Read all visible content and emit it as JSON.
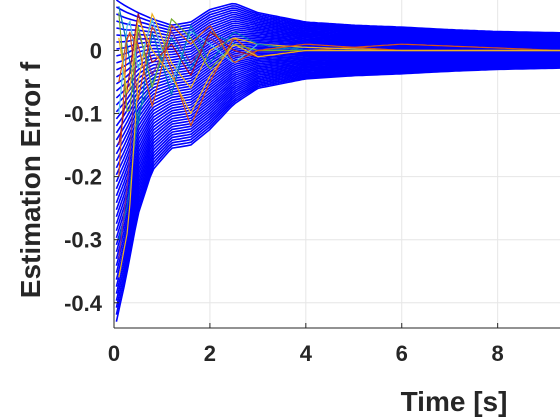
{
  "chart_data": {
    "type": "line",
    "xlabel": "Time [s]",
    "ylabel": "Estimation Error f",
    "xlim": [
      0,
      9.3
    ],
    "ylim": [
      -0.44,
      0.08
    ],
    "x_ticks": [
      0,
      2,
      4,
      6,
      8
    ],
    "y_ticks": [
      0,
      -0.1,
      -0.2,
      -0.3,
      -0.4
    ],
    "x_tick_labels": [
      "0",
      "2",
      "4",
      "6",
      "8"
    ],
    "y_tick_labels": [
      "0",
      "-0.1",
      "-0.2",
      "-0.3",
      "-0.4"
    ],
    "grid": true,
    "series": [
      {
        "color": "#0000ff",
        "x": [
          0.05,
          0.25,
          0.5,
          0.8,
          1.2,
          1.6,
          2.0,
          2.5,
          3.0,
          4.0,
          5.0,
          6.0,
          7.0,
          8.0,
          9.3
        ],
        "values": [
          -0.43,
          -0.36,
          -0.26,
          -0.19,
          -0.155,
          -0.15,
          -0.125,
          -0.085,
          -0.06,
          -0.045,
          -0.04,
          -0.037,
          -0.033,
          -0.03,
          -0.028
        ]
      },
      {
        "color": "#0000ff",
        "x": [
          0.05,
          0.25,
          0.5,
          0.8,
          1.2,
          1.6,
          2.0,
          2.5,
          3.0,
          4.0,
          5.0,
          6.0,
          7.0,
          8.0,
          9.3
        ],
        "values": [
          0.08,
          0.07,
          0.06,
          0.05,
          0.04,
          0.045,
          0.065,
          0.075,
          0.06,
          0.045,
          0.04,
          0.037,
          0.033,
          0.03,
          0.028
        ]
      },
      {
        "color": "#0072bd",
        "x": [
          0.1,
          0.3,
          0.5,
          0.8,
          1.2,
          1.6,
          2.0,
          2.5,
          3.0,
          4.0,
          6.0,
          9.3
        ],
        "values": [
          -0.3,
          -0.24,
          -0.1,
          -0.05,
          0.02,
          -0.03,
          0.03,
          0.01,
          0.0,
          0.005,
          0.0,
          0.0
        ]
      },
      {
        "color": "#d95319",
        "x": [
          0.1,
          0.3,
          0.5,
          0.8,
          1.2,
          1.6,
          2.0,
          2.5,
          3.0,
          4.0,
          6.0,
          9.3
        ],
        "values": [
          -0.2,
          0.05,
          -0.08,
          0.04,
          -0.03,
          -0.12,
          -0.05,
          0.02,
          -0.01,
          0.0,
          0.01,
          0.0
        ]
      },
      {
        "color": "#edb120",
        "x": [
          0.1,
          0.3,
          0.5,
          0.8,
          1.2,
          1.6,
          2.0,
          2.5,
          3.0,
          4.0,
          6.0,
          9.3
        ],
        "values": [
          -0.36,
          -0.28,
          -0.05,
          0.06,
          -0.02,
          -0.06,
          0.0,
          0.02,
          0.01,
          0.005,
          0.0,
          0.0
        ]
      },
      {
        "color": "#7e2f8e",
        "x": [
          0.1,
          0.3,
          0.5,
          0.8,
          1.2,
          1.6,
          2.0,
          2.5,
          3.0,
          4.0,
          6.0,
          9.3
        ],
        "values": [
          -0.33,
          -0.2,
          0.03,
          -0.04,
          0.03,
          -0.02,
          0.02,
          -0.01,
          0.0,
          0.0,
          0.0,
          0.0
        ]
      },
      {
        "color": "#77ac30",
        "x": [
          0.1,
          0.3,
          0.5,
          0.8,
          1.2,
          1.6,
          2.0,
          2.5,
          3.0,
          4.0,
          6.0,
          9.3
        ],
        "values": [
          0.06,
          -0.12,
          0.04,
          -0.06,
          0.05,
          0.02,
          -0.03,
          0.01,
          0.0,
          0.0,
          0.0,
          0.0
        ]
      },
      {
        "color": "#4dbeee",
        "x": [
          0.1,
          0.3,
          0.5,
          0.8,
          1.2,
          1.6,
          2.0,
          2.5,
          3.0,
          4.0,
          6.0,
          9.3
        ],
        "values": [
          -0.1,
          0.06,
          -0.03,
          0.05,
          -0.05,
          0.03,
          0.01,
          -0.02,
          0.01,
          0.0,
          0.0,
          0.0
        ]
      },
      {
        "color": "#a2142f",
        "x": [
          0.1,
          0.3,
          0.5,
          0.8,
          1.2,
          1.6,
          2.0,
          2.5,
          3.0,
          4.0,
          6.0,
          9.3
        ],
        "values": [
          -0.15,
          -0.05,
          0.06,
          -0.02,
          0.01,
          -0.04,
          0.03,
          0.0,
          -0.01,
          0.0,
          0.0,
          0.0
        ]
      },
      {
        "color": "#0072bd",
        "x": [
          0.1,
          0.3,
          0.5,
          0.8,
          1.2,
          1.6,
          2.0,
          2.5,
          3.0,
          4.0,
          6.0,
          9.3
        ],
        "values": [
          0.07,
          0.0,
          -0.12,
          0.03,
          -0.07,
          0.04,
          -0.02,
          0.03,
          0.01,
          0.0,
          0.0,
          0.0
        ]
      },
      {
        "color": "#d95319",
        "x": [
          0.1,
          0.3,
          0.5,
          0.8,
          1.2,
          1.6,
          2.0,
          2.5,
          3.0,
          4.0,
          6.0,
          9.3
        ],
        "values": [
          -0.05,
          0.03,
          0.01,
          -0.09,
          0.04,
          0.01,
          0.04,
          -0.02,
          0.0,
          0.01,
          0.0,
          0.0
        ]
      },
      {
        "color": "#edb120",
        "x": [
          0.1,
          0.3,
          0.5,
          0.8,
          1.2,
          1.6,
          2.0,
          2.5,
          3.0,
          4.0,
          6.0,
          9.3
        ],
        "values": [
          0.02,
          -0.08,
          0.05,
          0.0,
          -0.04,
          -0.1,
          -0.04,
          0.01,
          -0.01,
          0.0,
          0.0,
          0.0
        ]
      }
    ]
  }
}
